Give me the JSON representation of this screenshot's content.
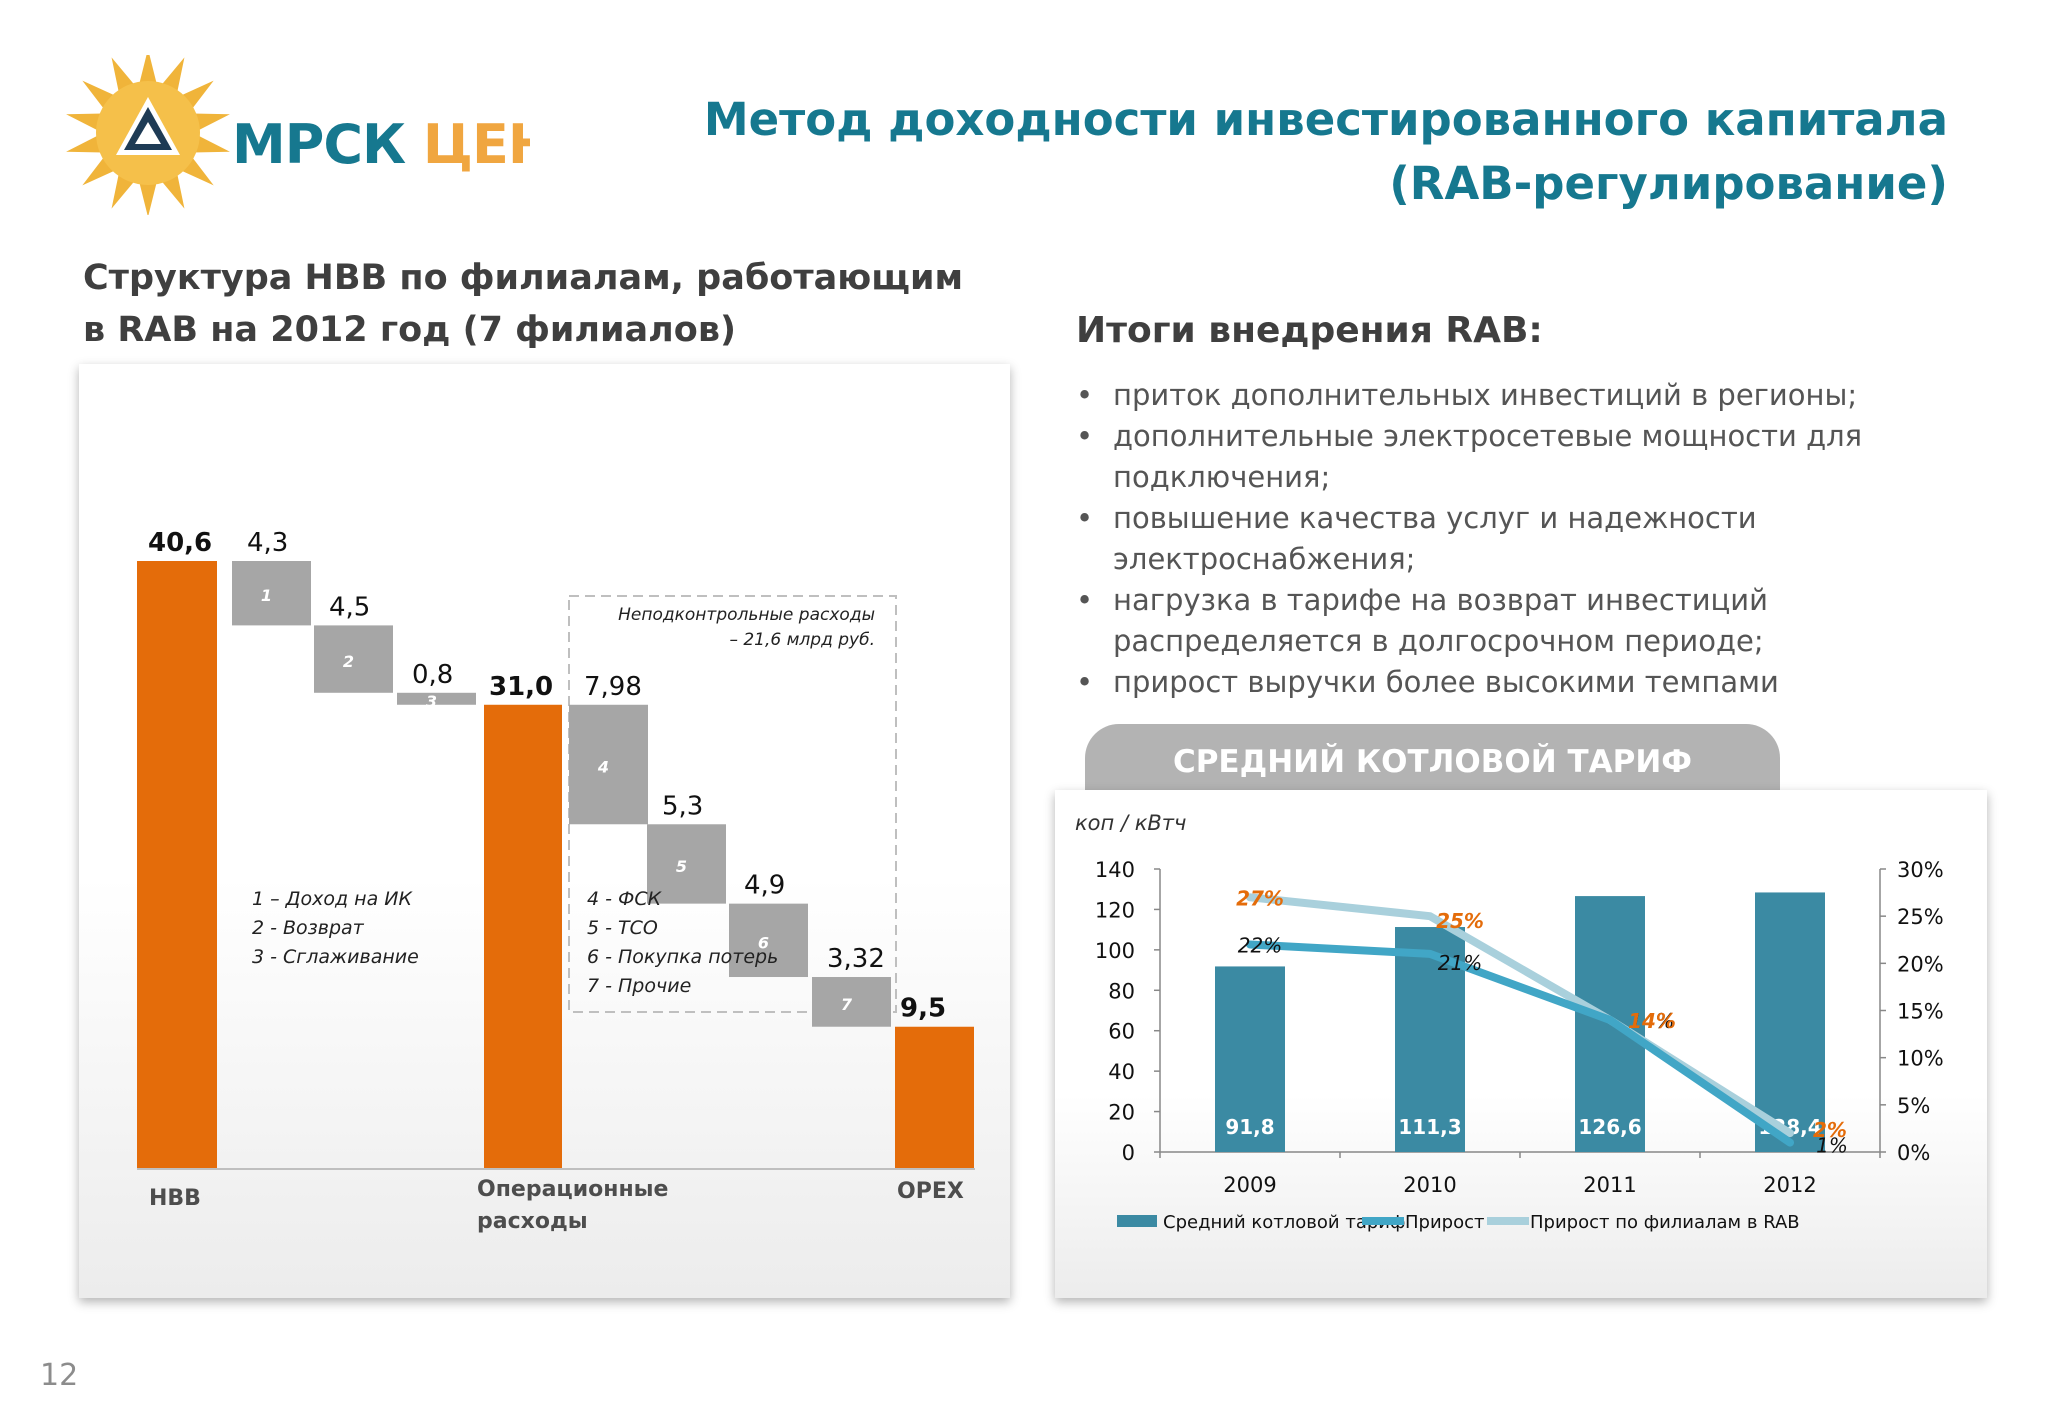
{
  "logo": {
    "text": "МРСК ЦЕНТРА"
  },
  "header": {
    "title_line1": "Метод доходности инвестированного капитала",
    "title_line2": "(RAB-регулирование)"
  },
  "left": {
    "heading_line1": "Структура НВВ по филиалам, работающим",
    "heading_line2": "в RAB на 2012 год (7 филиалов)"
  },
  "right": {
    "heading": "Итоги внедрения RAB:",
    "bullets": [
      "приток дополнительных инвестиций в регионы;",
      "дополнительные электросетевые мощности для подключения;",
      "повышение качества услуг и надежности электроснабжения;",
      "нагрузка в тарифе на возврат инвестиций распределяется в долгосрочном периоде;",
      "прирост выручки более высокими темпами"
    ],
    "bullet_lines": [
      [
        "приток дополнительных инвестиций в регионы;"
      ],
      [
        "дополнительные электросетевые мощности для",
        "подключения;"
      ],
      [
        "повышение качества услуг и надежности",
        "электроснабжения;"
      ],
      [
        "нагрузка в тарифе на возврат инвестиций",
        "распределяется в долгосрочном периоде;"
      ],
      [
        "прирост выручки более высокими темпами"
      ]
    ],
    "tariff_tab": "СРЕДНИЙ КОТЛОВОЙ ТАРИФ"
  },
  "page_number": "12",
  "colors": {
    "orange": "#e46c0a",
    "gray": "#a6a6a6",
    "teal": "#16788f",
    "bar_teal": "#3b8aa3",
    "line1": "#41a6c6",
    "line2": "#a9d0dc",
    "label_orange": "#e46c0a"
  },
  "chart_data": [
    {
      "type": "bar",
      "subtype": "waterfall",
      "categories": [
        "НВВ",
        "1",
        "2",
        "3",
        "Операционные расходы",
        "4",
        "5",
        "6",
        "7",
        "OPEX"
      ],
      "values": [
        40.6,
        4.3,
        4.5,
        0.8,
        31.0,
        7.98,
        5.3,
        4.9,
        3.32,
        9.5
      ],
      "value_labels": [
        "40,6",
        "4,3",
        "4,5",
        "0,8",
        "31,0",
        "7,98",
        "5,3",
        "4,9",
        "3,32",
        "9,5"
      ],
      "bar_kinds": [
        "total",
        "step",
        "step",
        "step",
        "total",
        "step",
        "step",
        "step",
        "step",
        "total"
      ],
      "axis_labels": {
        "0": "НВВ",
        "4": "Операционные расходы",
        "9": "OPEX"
      },
      "ylim": [
        0,
        40.6
      ],
      "legend_left": [
        "1 – Доход на ИК",
        "2 - Возврат",
        "3 - Сглаживание"
      ],
      "legend_right": [
        "4 - ФСК",
        "5 - ТСО",
        "6 - Покупка потерь",
        "7 - Прочие"
      ],
      "box_note_line1": "Неподконтрольные расходы",
      "box_note_line2": "– 21,6 млрд руб."
    },
    {
      "type": "bar",
      "title": "СРЕДНИЙ КОТЛОВОЙ ТАРИФ",
      "ylabel": "коп / кВтч",
      "categories": [
        "2009",
        "2010",
        "2011",
        "2012"
      ],
      "ylim": [
        0,
        140
      ],
      "y_ticks": [
        "0",
        "20",
        "40",
        "60",
        "80",
        "100",
        "120",
        "140"
      ],
      "y2lim": [
        0,
        30
      ],
      "y2_ticks": [
        "0%",
        "5%",
        "10%",
        "15%",
        "20%",
        "25%",
        "30%"
      ],
      "series": [
        {
          "name": "Средний котловой тариф",
          "type": "bar",
          "values": [
            91.8,
            111.3,
            126.6,
            128.4
          ],
          "labels": [
            "91,8",
            "111,3",
            "126,6",
            "128,4"
          ]
        },
        {
          "name": "Прирост",
          "type": "line",
          "axis": "right",
          "values": [
            22,
            21,
            14,
            1
          ],
          "labels": [
            "22%",
            "21%",
            "14%",
            "1%"
          ]
        },
        {
          "name": "Прирост по филиалам в RAB",
          "type": "line",
          "axis": "right",
          "values": [
            27,
            25,
            14,
            2
          ],
          "labels": [
            "27%",
            "25%",
            "14%",
            "2%"
          ]
        }
      ],
      "legend_position": "bottom"
    }
  ]
}
